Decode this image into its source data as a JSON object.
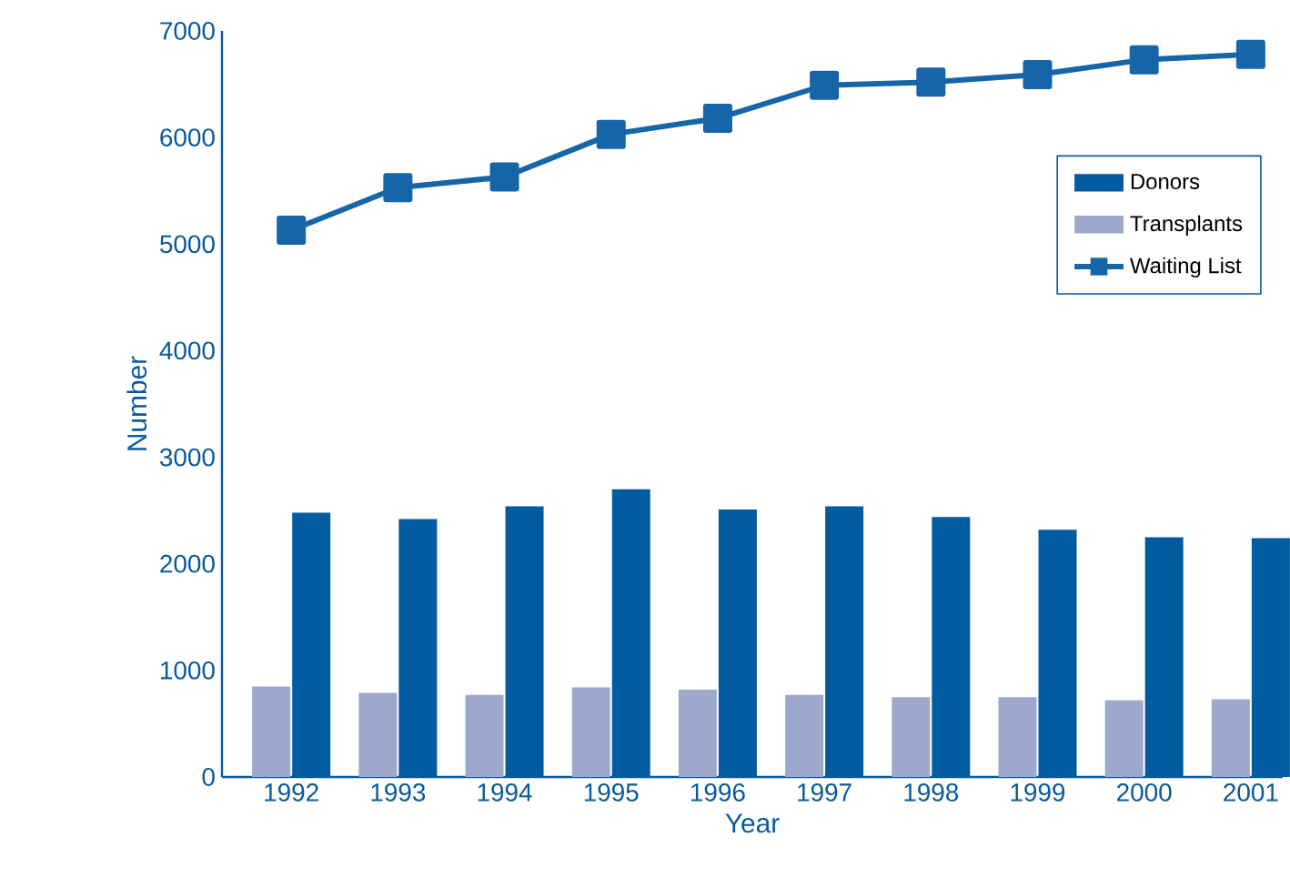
{
  "chart_data": {
    "type": "bar",
    "xlabel": "Year",
    "ylabel": "Number",
    "categories": [
      "1992",
      "1993",
      "1994",
      "1995",
      "1996",
      "1997",
      "1998",
      "1999",
      "2000",
      "2001"
    ],
    "series": [
      {
        "name": "Donors",
        "color": "#005b9f",
        "values": [
          2480,
          2420,
          2540,
          2700,
          2510,
          2540,
          2440,
          2320,
          2250,
          2240
        ]
      },
      {
        "name": "Transplants",
        "color": "#9ea8cc",
        "values": [
          850,
          790,
          770,
          840,
          820,
          770,
          750,
          750,
          720,
          730
        ]
      },
      {
        "name": "Waiting List",
        "type": "line",
        "color": "#1565a8",
        "marker": "square",
        "values": [
          5130,
          5530,
          5630,
          6030,
          6180,
          6490,
          6520,
          6590,
          6730,
          6780
        ]
      }
    ],
    "ylim": [
      0,
      7000
    ],
    "yticks": [
      0,
      1000,
      2000,
      3000,
      4000,
      5000,
      6000,
      7000
    ],
    "grid": false,
    "legend": "right"
  }
}
